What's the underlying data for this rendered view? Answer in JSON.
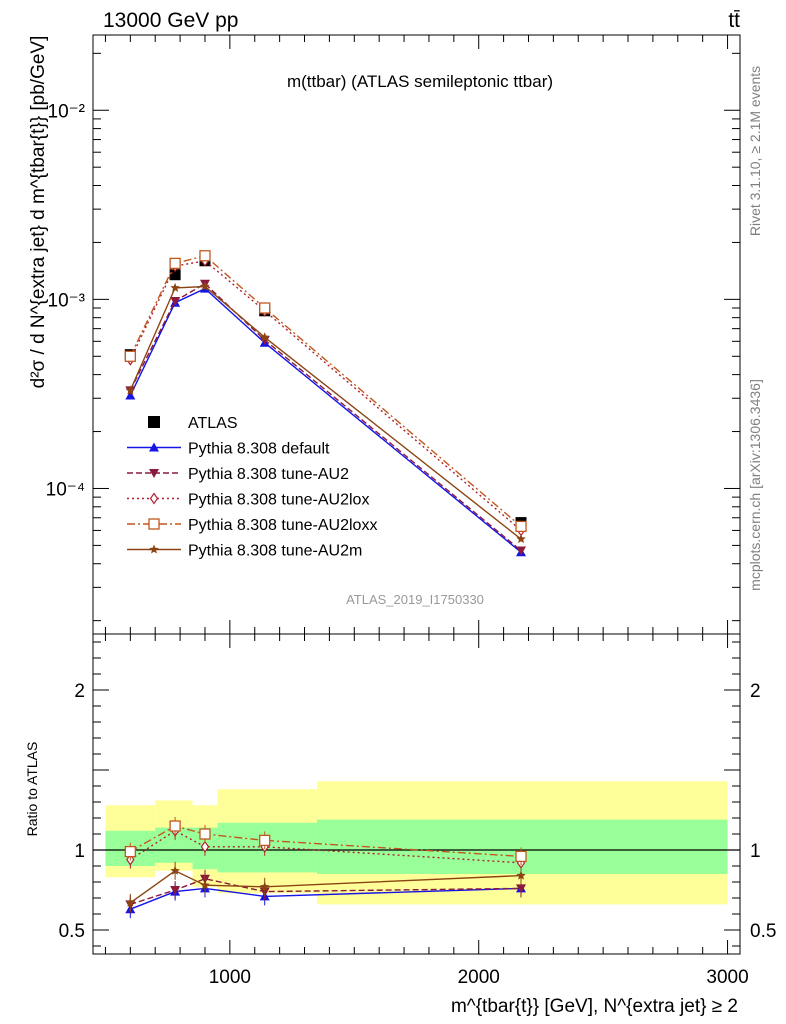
{
  "header": {
    "left": "13000 GeV pp",
    "right": "tt̄"
  },
  "chart_data": [
    {
      "type": "line",
      "title": "m(ttbar) (ATLAS semileptonic ttbar)",
      "analysis_id": "ATLAS_2019_I1750330",
      "ylabel": "d²σ / d N^{extra jet} d m^{tbar{t}} [pb/GeV]",
      "yscale": "log",
      "ylim": [
        1.7e-05,
        0.025
      ],
      "xlim": [
        450,
        3050
      ],
      "yticks": [
        {
          "value": 0.01,
          "label": "10⁻²"
        },
        {
          "value": 0.001,
          "label": "10⁻³"
        },
        {
          "value": 0.0001,
          "label": "10⁻⁴"
        }
      ],
      "legend_position": "center-left",
      "series": [
        {
          "name": "ATLAS",
          "color": "#000000",
          "marker": "square",
          "x": [
            600,
            780,
            900,
            1140,
            2170
          ],
          "y": [
            0.00051,
            0.00135,
            0.0016,
            0.00087,
            6.6e-05
          ]
        },
        {
          "name": "Pythia 8.308 default",
          "color": "#1515e6",
          "marker": "triangle-up",
          "dash": "solid",
          "x": [
            600,
            780,
            900,
            1140,
            2170
          ],
          "y": [
            0.00031,
            0.00096,
            0.00114,
            0.00059,
            4.6e-05
          ]
        },
        {
          "name": "Pythia 8.308 tune-AU2",
          "color": "#8b1a3c",
          "marker": "triangle-down",
          "dash": "dashed",
          "x": [
            600,
            780,
            900,
            1140,
            2170
          ],
          "y": [
            0.00033,
            0.00098,
            0.00121,
            0.00061,
            4.7e-05
          ]
        },
        {
          "name": "Pythia 8.308 tune-AU2lox",
          "color": "#b02030",
          "marker": "diamond",
          "dash": "dotted",
          "x": [
            600,
            780,
            900,
            1140,
            2170
          ],
          "y": [
            0.00048,
            0.0015,
            0.0016,
            0.00087,
            6e-05
          ]
        },
        {
          "name": "Pythia 8.308 tune-AU2loxx",
          "color": "#c0581e",
          "marker": "open-square",
          "dash": "dashdot",
          "x": [
            600,
            780,
            900,
            1140,
            2170
          ],
          "y": [
            0.0005,
            0.00155,
            0.0017,
            0.0009,
            6.3e-05
          ]
        },
        {
          "name": "Pythia 8.308 tune-AU2m",
          "color": "#8b4513",
          "marker": "star",
          "dash": "solid",
          "x": [
            600,
            780,
            900,
            1140,
            2170
          ],
          "y": [
            0.00033,
            0.00115,
            0.00117,
            0.00063,
            5.4e-05
          ]
        }
      ]
    },
    {
      "type": "line",
      "ylabel": "Ratio to ATLAS",
      "xlabel": "m^{tbar{t}} [GeV], N^{extra jet} ≥ 2",
      "xlim": [
        450,
        3050
      ],
      "ylim": [
        0.35,
        2.35
      ],
      "xticks": [
        {
          "value": 1000,
          "label": "1000"
        },
        {
          "value": 2000,
          "label": "2000"
        },
        {
          "value": 3000,
          "label": "3000"
        }
      ],
      "yticks": [
        {
          "value": 0.5,
          "label": "0.5"
        },
        {
          "value": 1,
          "label": "1"
        },
        {
          "value": 2,
          "label": "2"
        }
      ],
      "bands": [
        {
          "x0": 500,
          "x1": 700,
          "stat_lo": 0.9,
          "stat_hi": 1.12,
          "tot_lo": 0.83,
          "tot_hi": 1.28
        },
        {
          "x0": 700,
          "x1": 850,
          "stat_lo": 0.92,
          "stat_hi": 1.14,
          "tot_lo": 0.87,
          "tot_hi": 1.31
        },
        {
          "x0": 850,
          "x1": 950,
          "stat_lo": 0.88,
          "stat_hi": 1.14,
          "tot_lo": 0.77,
          "tot_hi": 1.28
        },
        {
          "x0": 950,
          "x1": 1350,
          "stat_lo": 0.86,
          "stat_hi": 1.17,
          "tot_lo": 0.73,
          "tot_hi": 1.38
        },
        {
          "x0": 1350,
          "x1": 3000,
          "stat_lo": 0.85,
          "stat_hi": 1.19,
          "tot_lo": 0.66,
          "tot_hi": 1.43
        }
      ],
      "series": [
        {
          "name": "Pythia 8.308 default",
          "color": "#1515e6",
          "marker": "triangle-up",
          "dash": "solid",
          "x": [
            600,
            780,
            900,
            1140,
            2170
          ],
          "y": [
            0.63,
            0.74,
            0.76,
            0.71,
            0.76
          ]
        },
        {
          "name": "Pythia 8.308 tune-AU2",
          "color": "#8b1a3c",
          "marker": "triangle-down",
          "dash": "dashed",
          "x": [
            600,
            780,
            900,
            1140,
            2170
          ],
          "y": [
            0.66,
            0.75,
            0.82,
            0.74,
            0.76
          ]
        },
        {
          "name": "Pythia 8.308 tune-AU2lox",
          "color": "#b02030",
          "marker": "diamond",
          "dash": "dotted",
          "x": [
            600,
            780,
            900,
            1140,
            2170
          ],
          "y": [
            0.94,
            1.12,
            1.02,
            1.02,
            0.92
          ]
        },
        {
          "name": "Pythia 8.308 tune-AU2loxx",
          "color": "#c0581e",
          "marker": "open-square",
          "dash": "dashdot",
          "x": [
            600,
            780,
            900,
            1140,
            2170
          ],
          "y": [
            0.99,
            1.15,
            1.1,
            1.06,
            0.96
          ]
        },
        {
          "name": "Pythia 8.308 tune-AU2m",
          "color": "#8b4513",
          "marker": "star",
          "dash": "solid",
          "x": [
            600,
            780,
            900,
            1140,
            2170
          ],
          "y": [
            0.67,
            0.87,
            0.78,
            0.77,
            0.84
          ]
        }
      ]
    }
  ],
  "side_labels": {
    "rivet": "Rivet 3.1.10, ≥ 2.1M events",
    "mcplots": "mcplots.cern.ch [arXiv:1306.3436]"
  },
  "colors": {
    "stat_band": "#99ff99",
    "total_band": "#ffff99",
    "side_text": "#808080"
  }
}
